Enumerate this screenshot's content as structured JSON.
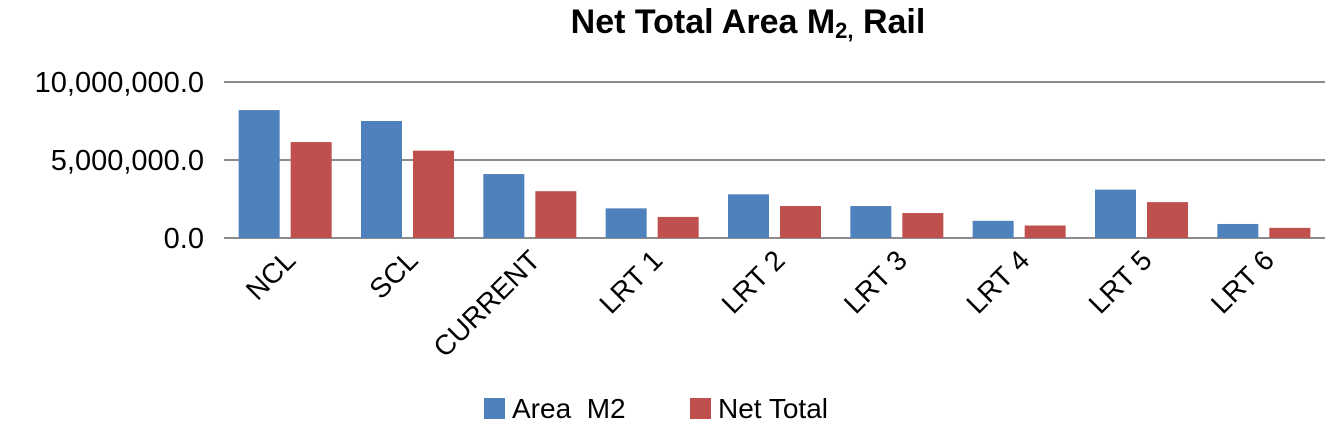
{
  "chart_data": {
    "type": "bar",
    "title": {
      "main": "Net Total Area M",
      "subscript": "2,",
      "suffix": " Rail"
    },
    "xlabel": "",
    "ylabel": "",
    "categories": [
      "NCL",
      "SCL",
      "CURRENT",
      "LRT 1",
      "LRT 2",
      "LRT 3",
      "LRT 4",
      "LRT 5",
      "LRT 6"
    ],
    "series": [
      {
        "name": "Area  M2",
        "color": "#4f81bd",
        "values": [
          8200000,
          7500000,
          4100000,
          1900000,
          2800000,
          2050000,
          1100000,
          3100000,
          900000
        ]
      },
      {
        "name": "Net Total",
        "color": "#c0504d",
        "values": [
          6150000,
          5600000,
          3000000,
          1350000,
          2050000,
          1600000,
          800000,
          2300000,
          650000
        ]
      }
    ],
    "ylim": [
      0,
      10000000
    ],
    "yticks": [
      0,
      5000000,
      10000000
    ],
    "ytick_labels": [
      "0.0",
      "5,000,000.0",
      "10,000,000.0"
    ],
    "grid": true,
    "legend_position": "bottom"
  }
}
